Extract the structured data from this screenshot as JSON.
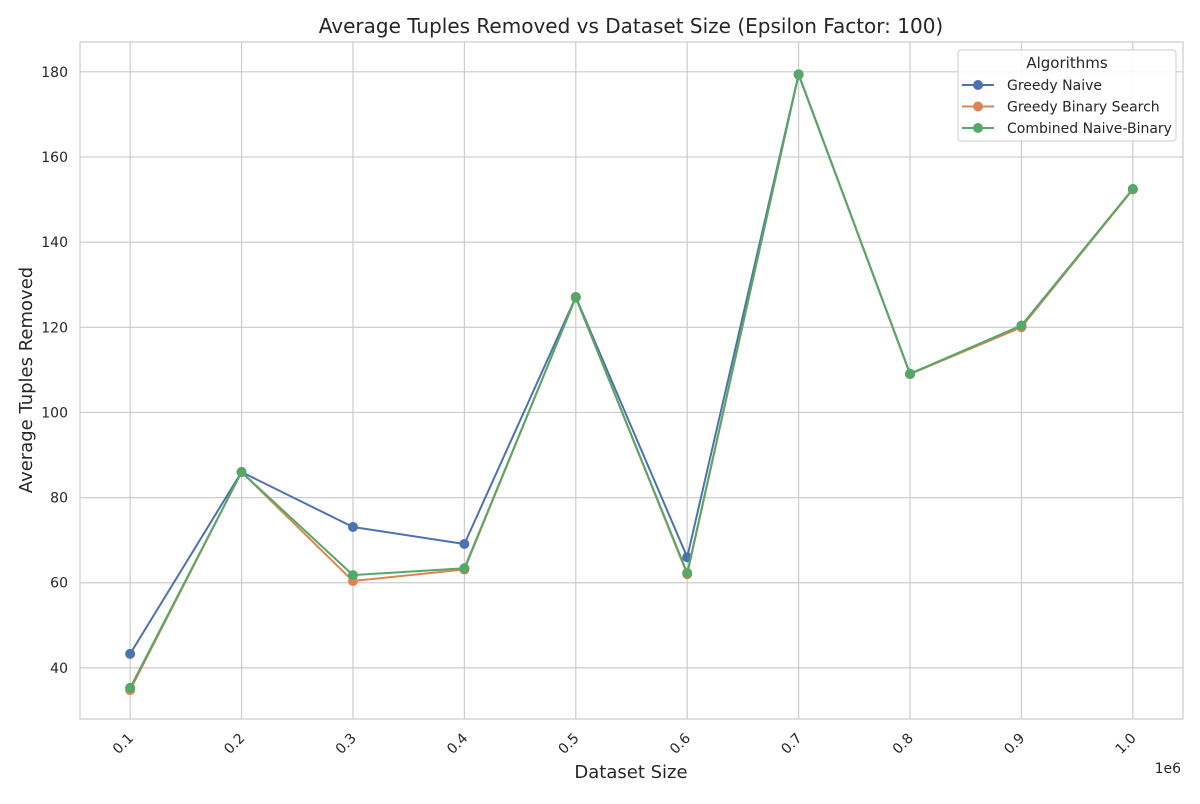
{
  "chart_data": {
    "type": "line",
    "title": "Average Tuples Removed vs Dataset Size (Epsilon Factor: 100)",
    "xlabel": "Dataset Size",
    "ylabel": "Average Tuples Removed",
    "x_offset_label": "1e6",
    "x": [
      0.1,
      0.2,
      0.3,
      0.4,
      0.5,
      0.6,
      0.7,
      0.8,
      0.9,
      1.0
    ],
    "x_tick_labels": [
      "0.1",
      "0.2",
      "0.3",
      "0.4",
      "0.5",
      "0.6",
      "0.7",
      "0.8",
      "0.9",
      "1.0"
    ],
    "y_ticks": [
      40,
      60,
      80,
      100,
      120,
      140,
      160,
      180
    ],
    "xlim": [
      0.055,
      1.045
    ],
    "ylim": [
      28,
      187
    ],
    "grid": true,
    "legend_title": "Algorithms",
    "legend_position": "top-right",
    "series": [
      {
        "name": "Greedy Naive",
        "color": "#4c72b0",
        "values": [
          43.3,
          86.0,
          73.1,
          69.1,
          127.1,
          66.0,
          179.4,
          109.0,
          120.4,
          152.4
        ]
      },
      {
        "name": "Greedy Binary Search",
        "color": "#dd8452",
        "values": [
          34.8,
          86.0,
          60.4,
          63.1,
          127.0,
          62.0,
          179.3,
          109.0,
          120.0,
          152.4
        ]
      },
      {
        "name": "Combined Naive-Binary",
        "color": "#55a868",
        "values": [
          35.3,
          86.0,
          61.8,
          63.4,
          127.0,
          62.3,
          179.4,
          109.1,
          120.4,
          152.5
        ]
      }
    ]
  }
}
